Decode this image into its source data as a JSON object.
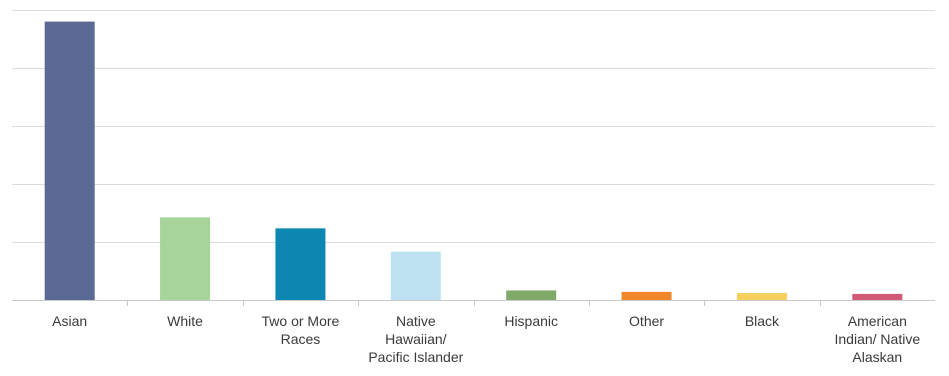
{
  "chart_data": {
    "type": "bar",
    "title": "",
    "xlabel": "",
    "ylabel": "",
    "ylim": [
      0,
      100
    ],
    "grid": true,
    "legend": "none",
    "categories": [
      [
        "Asian"
      ],
      [
        "White"
      ],
      [
        "Two or More",
        "Races"
      ],
      [
        "Native",
        "Hawaiian/",
        "Pacific Islander"
      ],
      [
        "Hispanic"
      ],
      [
        "Other"
      ],
      [
        "Black"
      ],
      [
        "American",
        "Indian/ Native",
        "Alaskan"
      ]
    ],
    "values": [
      96,
      28.5,
      24.7,
      16.7,
      3.3,
      2.8,
      2.4,
      2.1
    ],
    "colors": [
      "#5a6a95",
      "#a6d49b",
      "#0b87b1",
      "#bfe2f2",
      "#7faa6a",
      "#f0882a",
      "#f7cf5c",
      "#d25a77"
    ]
  }
}
